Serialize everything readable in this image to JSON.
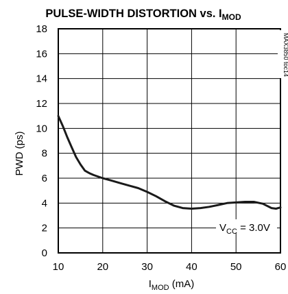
{
  "chart_data": {
    "type": "line",
    "title_main": "PULSE-WIDTH DISTORTION vs. I",
    "title_sub": "MOD",
    "xlabel_main": "I",
    "xlabel_sub": "MOD",
    "xlabel_unit": " (mA)",
    "ylabel": "PWD (ps)",
    "xlim": [
      10,
      60
    ],
    "ylim": [
      0,
      18
    ],
    "x_ticks": [
      "10",
      "20",
      "30",
      "40",
      "50",
      "60"
    ],
    "y_ticks": [
      "0",
      "2",
      "4",
      "6",
      "8",
      "10",
      "12",
      "14",
      "16",
      "18"
    ],
    "grid": true,
    "annotation": {
      "prefix": "V",
      "sub": "CC",
      "suffix": " = 3.0V"
    },
    "figure_id": "MAX3850 toc14",
    "series": [
      {
        "x": [
          10,
          11,
          12,
          13,
          14,
          15,
          16,
          17,
          18,
          20,
          22,
          24,
          26,
          28,
          30,
          32,
          34,
          36,
          38,
          40,
          42,
          44,
          46,
          48,
          50,
          52,
          54,
          56,
          58,
          59,
          60
        ],
        "y": [
          11.0,
          10.2,
          9.3,
          8.5,
          7.7,
          7.1,
          6.6,
          6.4,
          6.25,
          6.0,
          5.8,
          5.6,
          5.4,
          5.2,
          4.9,
          4.55,
          4.15,
          3.8,
          3.6,
          3.55,
          3.6,
          3.7,
          3.85,
          4.0,
          4.05,
          4.1,
          4.1,
          3.95,
          3.6,
          3.55,
          3.65
        ]
      }
    ]
  }
}
